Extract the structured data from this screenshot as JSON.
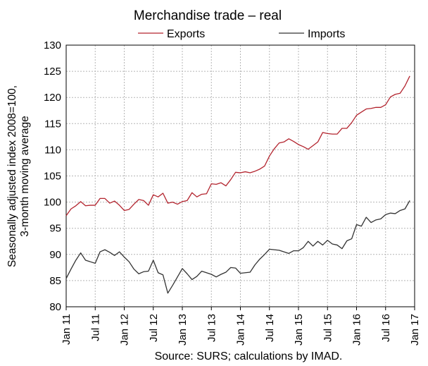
{
  "chart_data": {
    "type": "line",
    "title": "Merchandise trade – real",
    "ylabel": "Seasonally adjusted index 2008=100, 3-month moving average",
    "ylim": [
      80,
      130
    ],
    "yticks": [
      80,
      85,
      90,
      95,
      100,
      105,
      110,
      115,
      120,
      125,
      130
    ],
    "x_tick_labels": [
      "Jan 11",
      "Jul 11",
      "Jan 12",
      "Jul 12",
      "Jan 13",
      "Jul 13",
      "Jan 14",
      "Jul 14",
      "Jan 15",
      "Jul 15",
      "Jan 16",
      "Jul 16",
      "Jan 17"
    ],
    "x_start": "Jan 11",
    "x_points": 72,
    "grid": true,
    "legend_position": "top",
    "source": "Source: SURS; calculations by IMAD.",
    "series": [
      {
        "name": "Exports",
        "color": "#b3242e",
        "values": [
          97.4,
          98.7,
          99.3,
          100.1,
          99.3,
          99.4,
          99.4,
          100.7,
          100.7,
          99.8,
          100.2,
          99.4,
          98.4,
          98.6,
          99.6,
          100.5,
          100.3,
          99.4,
          101.4,
          101.0,
          101.7,
          99.8,
          100.0,
          99.6,
          100.1,
          100.3,
          101.8,
          101.0,
          101.5,
          101.6,
          103.5,
          103.4,
          103.7,
          103.1,
          104.3,
          105.7,
          105.6,
          105.8,
          105.6,
          105.9,
          106.3,
          106.9,
          108.8,
          110.2,
          111.3,
          111.5,
          112.1,
          111.6,
          111.0,
          110.6,
          110.1,
          110.8,
          111.5,
          113.3,
          113.1,
          113.0,
          113.0,
          114.1,
          114.1,
          115.2,
          116.6,
          117.2,
          117.8,
          117.9,
          118.1,
          118.1,
          118.6,
          120.1,
          120.6,
          120.8,
          122.2,
          124.1
        ]
      },
      {
        "name": "Imports",
        "color": "#333333",
        "values": [
          85.4,
          87.2,
          88.9,
          90.3,
          88.9,
          88.6,
          88.3,
          90.5,
          90.9,
          90.4,
          89.8,
          90.5,
          89.5,
          88.6,
          87.2,
          86.3,
          86.7,
          86.8,
          88.9,
          86.5,
          86.1,
          82.6,
          84.1,
          85.7,
          87.3,
          86.3,
          85.2,
          85.8,
          86.8,
          86.5,
          86.2,
          85.7,
          86.2,
          86.6,
          87.5,
          87.4,
          86.4,
          86.5,
          86.6,
          88.0,
          89.1,
          90.0,
          91.0,
          90.9,
          90.8,
          90.5,
          90.2,
          90.7,
          90.7,
          91.3,
          92.5,
          91.6,
          92.5,
          91.8,
          92.7,
          92.0,
          91.8,
          91.1,
          92.6,
          93.0,
          95.7,
          95.4,
          97.1,
          96.1,
          96.6,
          96.8,
          97.6,
          97.9,
          97.8,
          98.4,
          98.7,
          100.3
        ]
      }
    ]
  }
}
